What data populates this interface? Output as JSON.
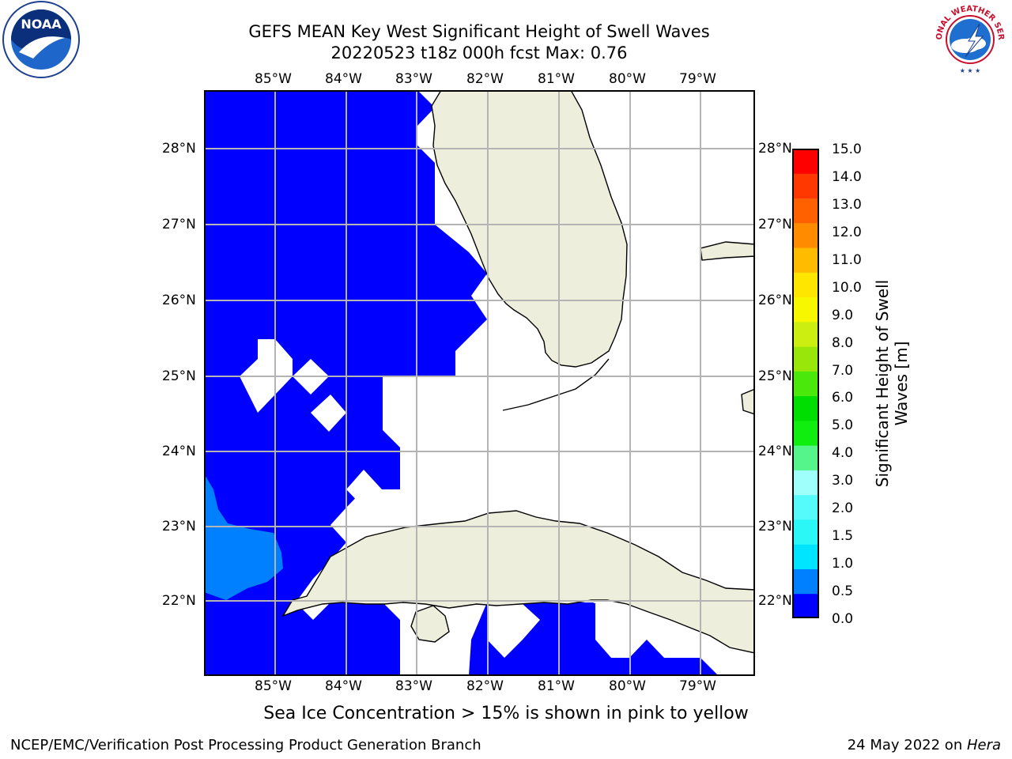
{
  "header": {
    "title_line1": "GEFS MEAN Key West Significant Height of Swell Waves",
    "title_line2": "20220523 t18z 000h fcst   Max: 0.76"
  },
  "logos": {
    "left": {
      "icon": "noaa-logo",
      "text": "NOAA"
    },
    "right": {
      "icon": "national-weather-service-logo",
      "text": "NATIONAL WEATHER SERVICE"
    }
  },
  "map": {
    "lon_labels": [
      "85°W",
      "84°W",
      "83°W",
      "82°W",
      "81°W",
      "80°W",
      "79°W"
    ],
    "lat_labels": [
      "28°N",
      "27°N",
      "26°N",
      "25°N",
      "24°N",
      "23°N",
      "22°N"
    ],
    "land_color": "#eeeedd",
    "ocean_low_color": "#0000ff",
    "ocean_mid_color": "#0080ff",
    "grid_color": "#b4b4b4"
  },
  "colorbar": {
    "title_line1": "Significant Height of Swell",
    "title_line2": "Waves [m]",
    "tick_labels": [
      "0.0",
      "0.5",
      "1.0",
      "1.5",
      "2.0",
      "3.0",
      "4.0",
      "5.0",
      "6.0",
      "7.0",
      "8.0",
      "9.0",
      "10.0",
      "11.0",
      "12.0",
      "13.0",
      "14.0",
      "15.0"
    ],
    "colors": [
      "#0000ff",
      "#0080ff",
      "#00e5ff",
      "#2bf7f7",
      "#55fafa",
      "#9ffffa",
      "#55f58c",
      "#10ee10",
      "#00dd00",
      "#4be80b",
      "#99e60b",
      "#ccee10",
      "#f7f700",
      "#ffe600",
      "#ffbb00",
      "#ff8c00",
      "#ff6000",
      "#ff3800",
      "#ff0000"
    ]
  },
  "footer": {
    "note": "Sea Ice Concentration > 15% is shown in pink to yellow",
    "credit_left": "NCEP/EMC/Verification Post Processing Product Generation Branch",
    "credit_right_date": "24 May 2022 on ",
    "credit_right_host": "Hera"
  }
}
